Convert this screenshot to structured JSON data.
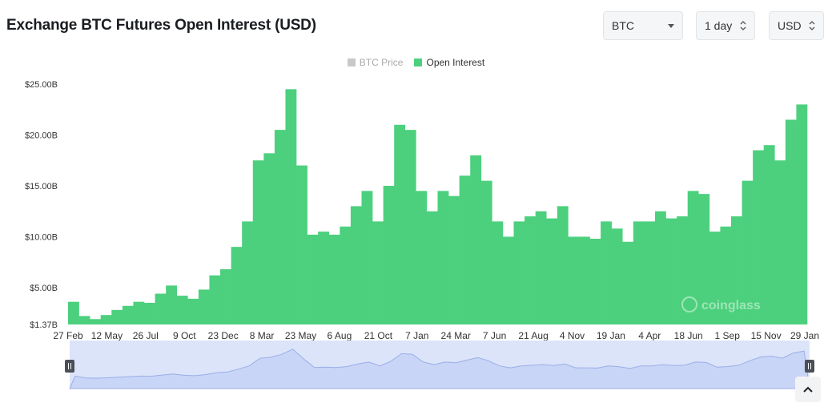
{
  "header": {
    "title": "Exchange BTC Futures Open Interest (USD)"
  },
  "controls": {
    "coin": "BTC",
    "interval": "1 day",
    "unit": "USD"
  },
  "legend": [
    {
      "label": "BTC Price",
      "color": "#c8c8c8",
      "active": false
    },
    {
      "label": "Open Interest",
      "color": "#4cd07d",
      "active": true
    }
  ],
  "watermark": "coinglass",
  "chart_data": {
    "type": "bar",
    "title": "Exchange BTC Futures Open Interest (USD)",
    "ylabel": "",
    "xlabel": "",
    "ylim": [
      1.37,
      25.0
    ],
    "yticks": [
      "$1.37B",
      "$5.00B",
      "$10.00B",
      "$15.00B",
      "$20.00B",
      "$25.00B"
    ],
    "ytick_values": [
      1.37,
      5,
      10,
      15,
      20,
      25
    ],
    "xticks": [
      "27 Feb",
      "12 May",
      "26 Jul",
      "9 Oct",
      "23 Dec",
      "8 Mar",
      "23 May",
      "6 Aug",
      "21 Oct",
      "7 Jan",
      "24 Mar",
      "7 Jun",
      "21 Aug",
      "4 Nov",
      "19 Jan",
      "4 Apr",
      "18 Jun",
      "1 Sep",
      "15 Nov",
      "29 Jan"
    ],
    "series": [
      {
        "name": "Open Interest",
        "color": "#4cd07d",
        "unit": "USD billions",
        "values": [
          3.6,
          2.2,
          1.9,
          2.3,
          2.8,
          3.2,
          3.6,
          3.5,
          4.4,
          5.2,
          4.2,
          3.9,
          4.8,
          6.2,
          6.8,
          9.0,
          11.5,
          17.5,
          18.2,
          20.5,
          24.5,
          17.0,
          10.2,
          10.5,
          10.2,
          11.0,
          13.0,
          14.5,
          11.5,
          15.0,
          21.0,
          20.5,
          14.5,
          12.5,
          14.5,
          14.0,
          16.0,
          18.0,
          15.5,
          11.5,
          10.0,
          11.5,
          12.0,
          12.5,
          11.8,
          13.0,
          10.0,
          10.0,
          9.8,
          11.5,
          10.8,
          9.5,
          11.5,
          11.5,
          12.5,
          11.8,
          12.0,
          14.5,
          14.2,
          10.5,
          11.0,
          12.0,
          15.5,
          18.5,
          19.0,
          17.5,
          21.5,
          23.0
        ]
      },
      {
        "name": "BTC Price",
        "hidden": true,
        "values": []
      }
    ],
    "navigator": {
      "series": "Open Interest",
      "handles": [
        "left",
        "right"
      ]
    },
    "grid": false,
    "legend_position": "top-center"
  }
}
